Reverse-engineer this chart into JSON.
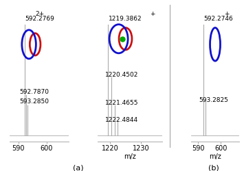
{
  "panel_a_left": {
    "peaks": [
      {
        "mz": 592.2769,
        "intensity": 1.0,
        "label": "592.2769"
      },
      {
        "mz": 592.787,
        "intensity": 0.36,
        "label": "592.7870"
      },
      {
        "mz": 593.285,
        "intensity": 0.27,
        "label": "593.2850"
      }
    ],
    "xlim": [
      587,
      608
    ],
    "xticks": [
      590,
      600
    ],
    "charge_label": "2+"
  },
  "panel_a_right": {
    "peaks": [
      {
        "mz": 1219.3862,
        "intensity": 1.0,
        "label": "1219.3862"
      },
      {
        "mz": 1220.4502,
        "intensity": 0.52,
        "label": "1220.4502"
      },
      {
        "mz": 1221.4655,
        "intensity": 0.27,
        "label": "1221.4655"
      },
      {
        "mz": 1222.4844,
        "intensity": 0.13,
        "label": "1222.4844"
      }
    ],
    "xlim": [
      1216,
      1237
    ],
    "xticks": [
      1220,
      1230
    ],
    "charge_label": "+",
    "xlabel": "m/z"
  },
  "panel_b": {
    "peaks": [
      {
        "mz": 592.2746,
        "intensity": 1.0,
        "label": "592.2746"
      },
      {
        "mz": 593.2825,
        "intensity": 0.33,
        "label": "593.2825"
      }
    ],
    "xlim": [
      587,
      608
    ],
    "xticks": [
      590,
      600
    ],
    "charge_label": "+",
    "xlabel": "m/z"
  },
  "peak_color": "#aaaaaa",
  "bg_color": "#ffffff",
  "fontsize": 7,
  "label_fontsize": 6.5,
  "panel_a_label": "(a)",
  "panel_b_label": "(b)",
  "separator_color": "#999999",
  "blue_color": "#1111cc",
  "red_color": "#cc1111",
  "green_color": "#00aa00"
}
